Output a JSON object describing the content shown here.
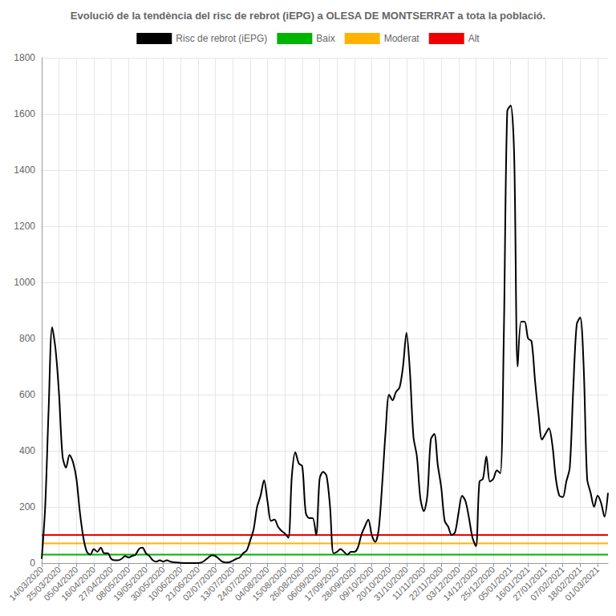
{
  "chart_data": {
    "type": "line",
    "title": "Evolució de la tendència del risc de rebrot (iEPG) a OLESA DE MONTSERRAT a tota la població.",
    "categories": [
      "14/03/2020",
      null,
      null,
      null,
      null,
      "25/03/2020",
      null,
      null,
      null,
      null,
      "05/04/2020",
      null,
      null,
      null,
      null,
      "16/04/2020",
      null,
      null,
      null,
      null,
      "27/04/2020",
      null,
      null,
      null,
      null,
      "08/05/2020",
      null,
      null,
      null,
      null,
      "19/05/2020",
      null,
      null,
      null,
      null,
      "30/05/2020",
      null,
      null,
      null,
      null,
      "10/06/2020",
      null,
      null,
      null,
      null,
      "21/06/2020",
      null,
      null,
      null,
      null,
      "02/07/2020",
      null,
      null,
      null,
      null,
      "13/07/2020",
      null,
      null,
      null,
      null,
      "24/07/2020",
      null,
      null,
      null,
      null,
      "04/08/2020",
      null,
      null,
      null,
      null,
      "15/08/2020",
      null,
      null,
      null,
      null,
      "26/08/2020",
      null,
      null,
      null,
      null,
      "06/09/2020",
      null,
      null,
      null,
      null,
      "17/09/2020",
      null,
      null,
      null,
      null,
      "28/09/2020",
      null,
      null,
      null,
      null,
      "09/10/2020",
      null,
      null,
      null,
      null,
      "20/10/2020",
      null,
      null,
      null,
      null,
      "31/10/2020",
      null,
      null,
      null,
      null,
      "11/11/2020",
      null,
      null,
      null,
      null,
      "22/11/2020",
      null,
      null,
      null,
      null,
      "03/12/2020",
      null,
      null,
      null,
      null,
      "14/12/2020",
      null,
      null,
      null,
      null,
      "25/12/2020",
      null,
      null,
      null,
      null,
      "05/01/2021",
      null,
      null,
      null,
      null,
      "16/01/2021",
      null,
      null,
      null,
      null,
      "27/01/2021",
      null,
      null,
      null,
      null,
      "07/02/2021",
      null,
      null,
      null,
      null,
      "18/02/2021",
      null,
      null,
      null,
      null,
      "01/03/2021",
      null,
      null,
      null
    ],
    "series": [
      {
        "name": "Risc de rebrot (iEPG)",
        "color": "#000000",
        "values": [
          15,
          200,
          550,
          840,
          760,
          600,
          380,
          340,
          385,
          360,
          300,
          180,
          90,
          40,
          30,
          50,
          40,
          55,
          35,
          35,
          15,
          10,
          10,
          15,
          25,
          20,
          25,
          30,
          50,
          55,
          35,
          25,
          10,
          5,
          10,
          5,
          10,
          5,
          3,
          2,
          1,
          0,
          0,
          0,
          0,
          0,
          2,
          10,
          20,
          28,
          25,
          15,
          5,
          2,
          3,
          8,
          15,
          20,
          35,
          45,
          80,
          120,
          200,
          240,
          295,
          220,
          150,
          155,
          130,
          115,
          105,
          90,
          310,
          395,
          355,
          345,
          180,
          160,
          160,
          100,
          300,
          325,
          310,
          200,
          35,
          40,
          50,
          40,
          30,
          40,
          40,
          55,
          100,
          130,
          155,
          100,
          75,
          120,
          280,
          470,
          600,
          580,
          610,
          625,
          700,
          820,
          680,
          450,
          380,
          230,
          185,
          240,
          440,
          460,
          350,
          270,
          150,
          130,
          100,
          110,
          180,
          240,
          220,
          160,
          90,
          60,
          290,
          300,
          380,
          290,
          300,
          330,
          320,
          800,
          1610,
          1630,
          1450,
          700,
          860,
          860,
          800,
          790,
          650,
          530,
          440,
          460,
          480,
          420,
          300,
          240,
          235,
          290,
          340,
          620,
          850,
          875,
          700,
          300,
          250,
          200,
          240,
          215,
          165,
          250
        ]
      },
      {
        "name": "Baix",
        "color": "#00b400",
        "values": [
          30,
          30,
          30,
          30,
          30,
          30,
          30,
          30,
          30,
          30,
          30,
          30,
          30,
          30,
          30,
          30,
          30,
          30,
          30,
          30,
          30,
          30,
          30,
          30,
          30,
          30,
          30,
          30,
          30,
          30,
          30,
          30,
          30,
          30,
          30,
          30,
          30,
          30,
          30,
          30,
          30,
          30,
          30,
          30,
          30,
          30,
          30,
          30,
          30,
          30,
          30,
          30,
          30,
          30,
          30,
          30,
          30,
          30,
          30,
          30,
          30,
          30,
          30,
          30,
          30,
          30,
          30,
          30,
          30,
          30,
          30,
          30,
          30,
          30,
          30,
          30,
          30,
          30,
          30,
          30,
          30,
          30,
          30,
          30,
          30,
          30,
          30,
          30,
          30,
          30,
          30,
          30,
          30,
          30,
          30,
          30,
          30,
          30,
          30,
          30,
          30,
          30,
          30,
          30,
          30,
          30,
          30,
          30,
          30,
          30,
          30,
          30,
          30,
          30,
          30,
          30,
          30,
          30,
          30,
          30,
          30,
          30,
          30,
          30,
          30,
          30,
          30,
          30,
          30,
          30,
          30,
          30,
          30,
          30,
          30,
          30,
          30,
          30,
          30,
          30,
          30,
          30,
          30,
          30,
          30,
          30,
          30,
          30,
          30,
          30,
          30,
          30,
          30,
          30,
          30,
          30,
          30,
          30,
          30,
          30,
          30,
          30,
          30,
          30
        ]
      },
      {
        "name": "Moderat",
        "color": "#ffb300",
        "values": [
          70,
          70,
          70,
          70,
          70,
          70,
          70,
          70,
          70,
          70,
          70,
          70,
          70,
          70,
          70,
          70,
          70,
          70,
          70,
          70,
          70,
          70,
          70,
          70,
          70,
          70,
          70,
          70,
          70,
          70,
          70,
          70,
          70,
          70,
          70,
          70,
          70,
          70,
          70,
          70,
          70,
          70,
          70,
          70,
          70,
          70,
          70,
          70,
          70,
          70,
          70,
          70,
          70,
          70,
          70,
          70,
          70,
          70,
          70,
          70,
          70,
          70,
          70,
          70,
          70,
          70,
          70,
          70,
          70,
          70,
          70,
          70,
          70,
          70,
          70,
          70,
          70,
          70,
          70,
          70,
          70,
          70,
          70,
          70,
          70,
          70,
          70,
          70,
          70,
          70,
          70,
          70,
          70,
          70,
          70,
          70,
          70,
          70,
          70,
          70,
          70,
          70,
          70,
          70,
          70,
          70,
          70,
          70,
          70,
          70,
          70,
          70,
          70,
          70,
          70,
          70,
          70,
          70,
          70,
          70,
          70,
          70,
          70,
          70,
          70,
          70,
          70,
          70,
          70,
          70,
          70,
          70,
          70,
          70,
          70,
          70,
          70,
          70,
          70,
          70,
          70,
          70,
          70,
          70,
          70,
          70,
          70,
          70,
          70,
          70,
          70,
          70,
          70,
          70,
          70,
          70,
          70,
          70,
          70,
          70,
          70,
          70,
          70,
          70
        ]
      },
      {
        "name": "Alt",
        "color": "#ee0000",
        "values": [
          100,
          100,
          100,
          100,
          100,
          100,
          100,
          100,
          100,
          100,
          100,
          100,
          100,
          100,
          100,
          100,
          100,
          100,
          100,
          100,
          100,
          100,
          100,
          100,
          100,
          100,
          100,
          100,
          100,
          100,
          100,
          100,
          100,
          100,
          100,
          100,
          100,
          100,
          100,
          100,
          100,
          100,
          100,
          100,
          100,
          100,
          100,
          100,
          100,
          100,
          100,
          100,
          100,
          100,
          100,
          100,
          100,
          100,
          100,
          100,
          100,
          100,
          100,
          100,
          100,
          100,
          100,
          100,
          100,
          100,
          100,
          100,
          100,
          100,
          100,
          100,
          100,
          100,
          100,
          100,
          100,
          100,
          100,
          100,
          100,
          100,
          100,
          100,
          100,
          100,
          100,
          100,
          100,
          100,
          100,
          100,
          100,
          100,
          100,
          100,
          100,
          100,
          100,
          100,
          100,
          100,
          100,
          100,
          100,
          100,
          100,
          100,
          100,
          100,
          100,
          100,
          100,
          100,
          100,
          100,
          100,
          100,
          100,
          100,
          100,
          100,
          100,
          100,
          100,
          100,
          100,
          100,
          100,
          100,
          100,
          100,
          100,
          100,
          100,
          100,
          100,
          100,
          100,
          100,
          100,
          100,
          100,
          100,
          100,
          100,
          100,
          100,
          100,
          100,
          100,
          100,
          100,
          100,
          100,
          100,
          100,
          100,
          100,
          100
        ]
      }
    ],
    "ylim": [
      0,
      1800
    ],
    "yticks": [
      0,
      200,
      400,
      600,
      800,
      1000,
      1200,
      1400,
      1600,
      1800
    ],
    "grid": true,
    "legend": "top"
  }
}
